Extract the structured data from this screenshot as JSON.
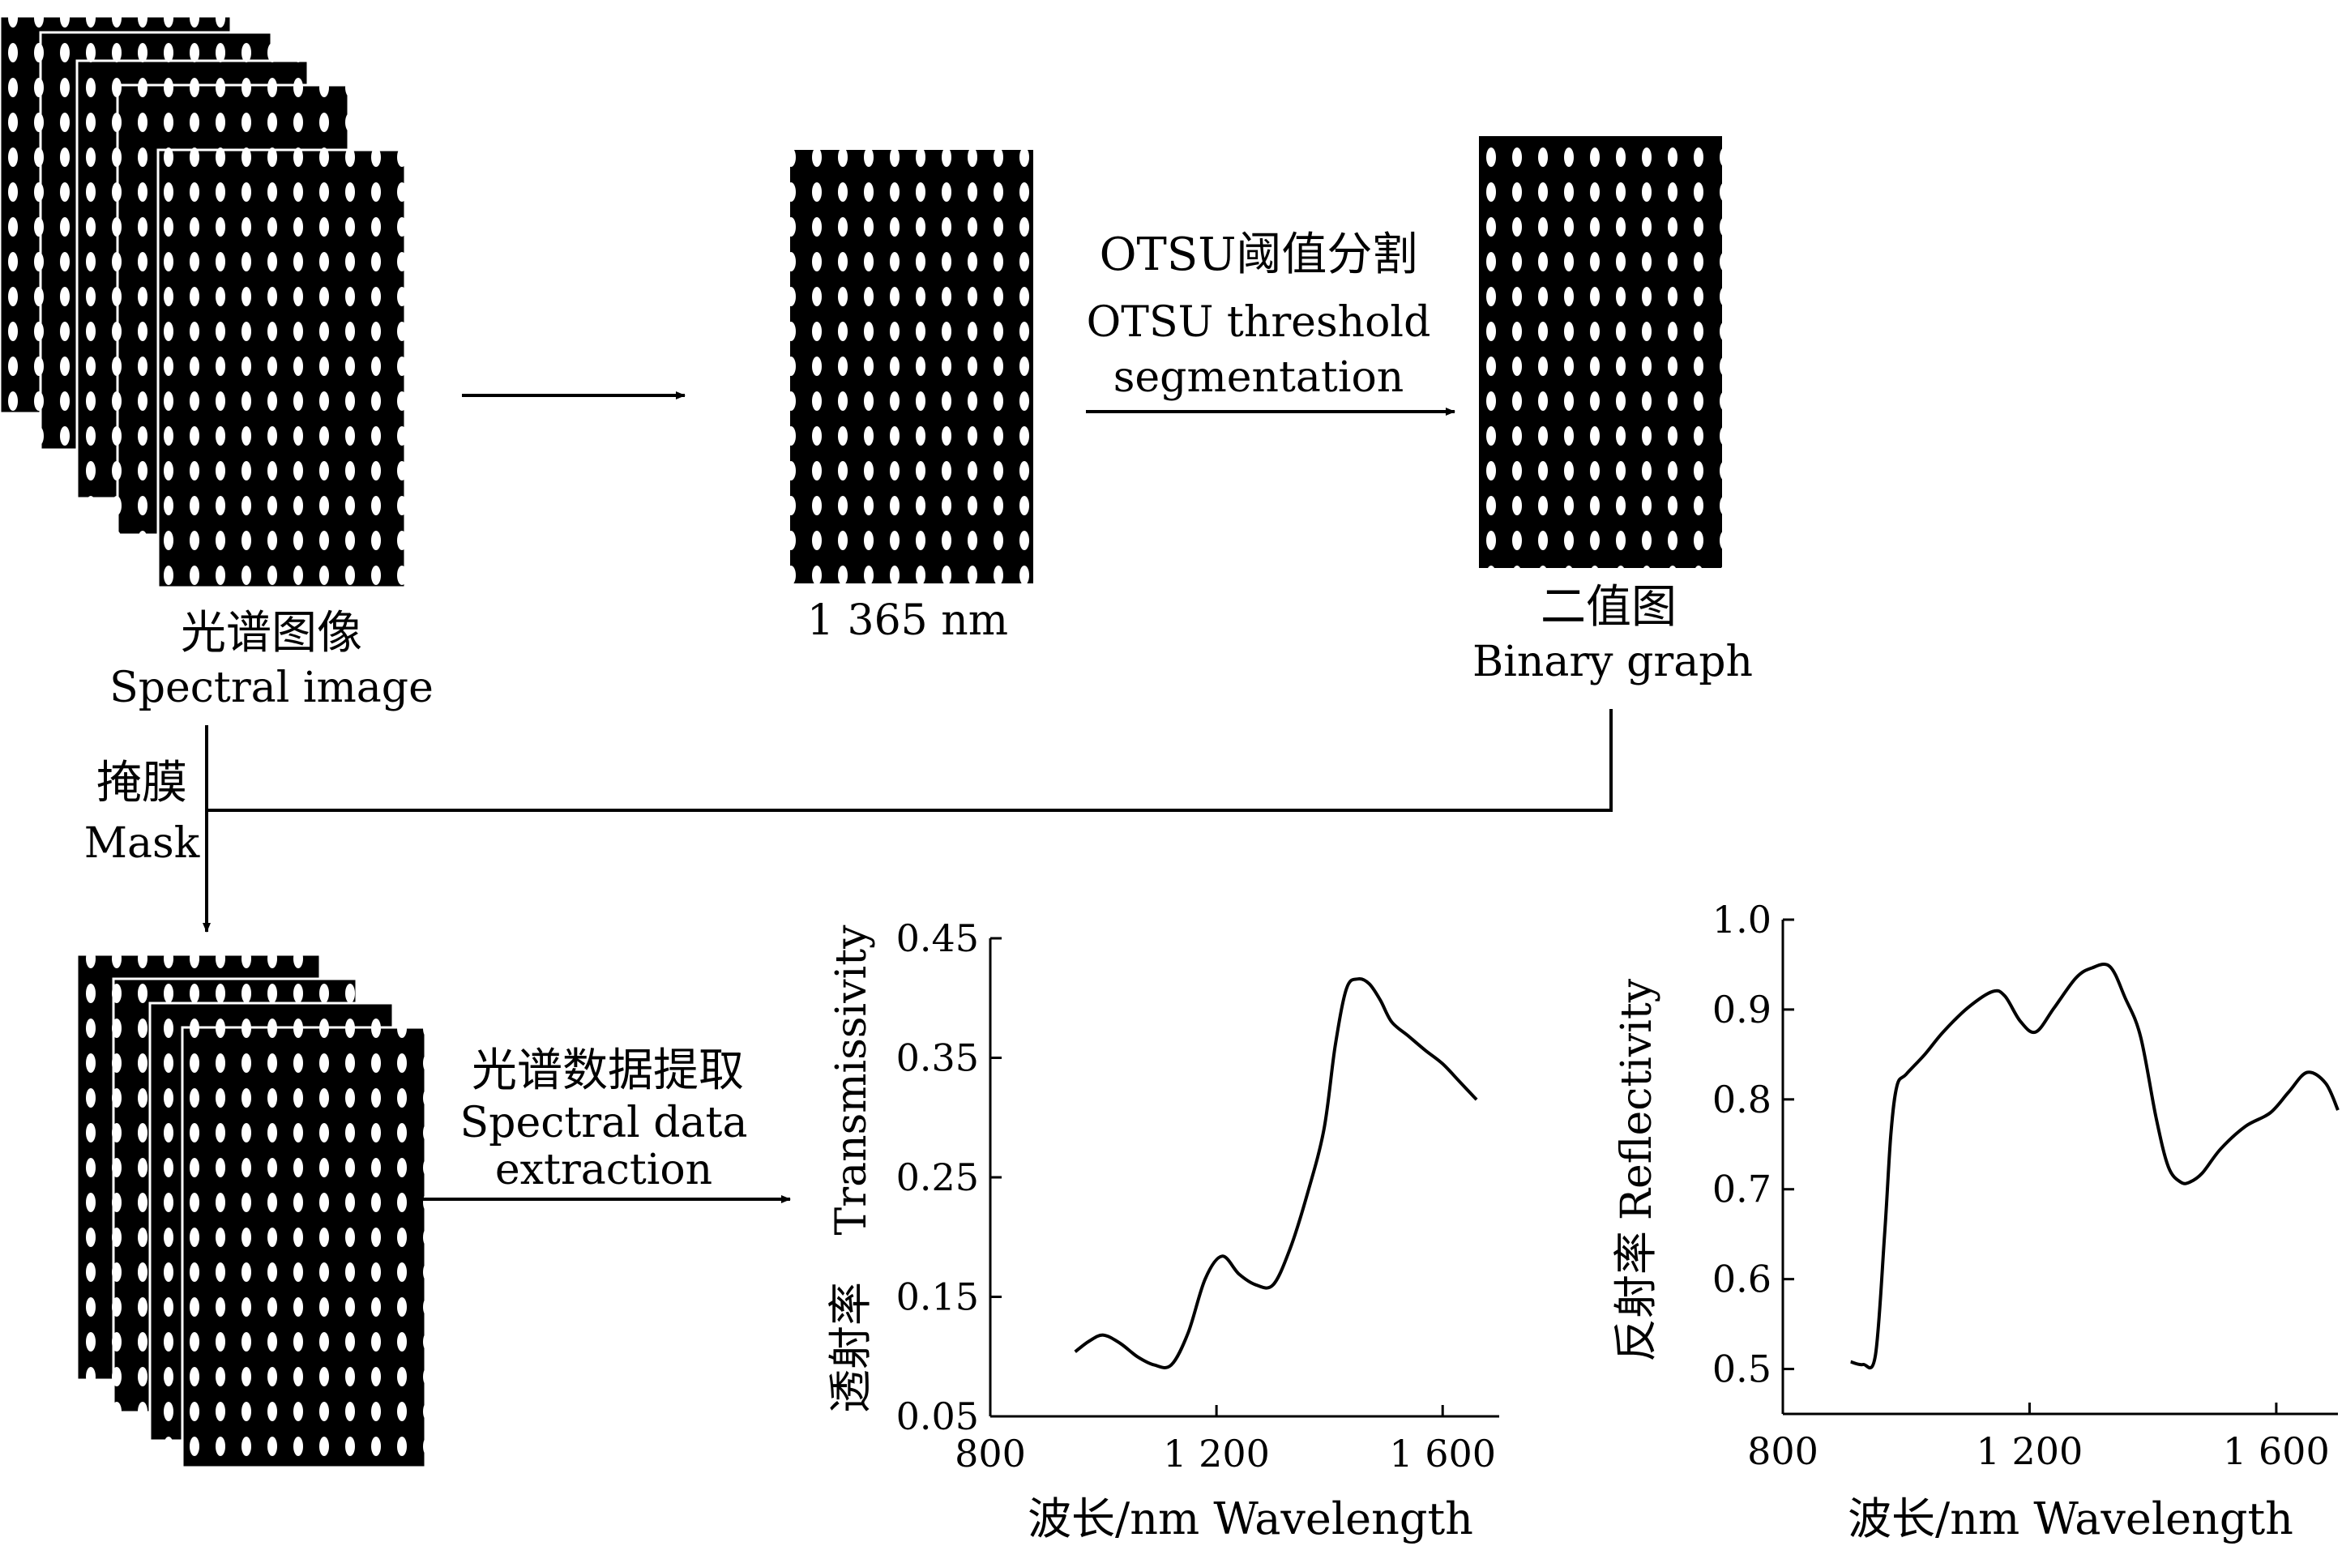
{
  "labels": {
    "spectral_image_cn": "光谱图像",
    "spectral_image_en": "Spectral image",
    "band_image": "1 365 nm",
    "otsu_cn": "OTSU阈值分割",
    "otsu_en_1": "OTSU threshold",
    "otsu_en_2": "segmentation",
    "binary_cn": "二值图",
    "binary_en": "Binary graph",
    "mask_cn": "掩膜",
    "mask_en": "Mask",
    "extract_cn": "光谱数据提取",
    "extract_en_1": "Spectral data",
    "extract_en_2": "extraction"
  },
  "chart_data": [
    {
      "type": "line",
      "xlabel": "波长/nm  Wavelength",
      "ylabel_cn": "透射率",
      "ylabel_en": "Transmissivity",
      "xlim": [
        800,
        1700
      ],
      "ylim": [
        0.05,
        0.45
      ],
      "xticks": [
        800,
        1200,
        1600
      ],
      "xtick_labels": [
        "800",
        "1 200",
        "1 600"
      ],
      "yticks": [
        0.05,
        0.15,
        0.25,
        0.35,
        0.45
      ],
      "ytick_labels": [
        "0.05",
        "0.15",
        "0.25",
        "0.35",
        "0.45"
      ],
      "series": [
        {
          "x": [
            950,
            975,
            1000,
            1030,
            1060,
            1090,
            1120,
            1150,
            1180,
            1210,
            1240,
            1270,
            1300,
            1330,
            1360,
            1390,
            1410,
            1430,
            1450,
            1470,
            1490,
            1510,
            1540,
            1570,
            1600,
            1630,
            1660
          ],
          "y": [
            0.104,
            0.113,
            0.118,
            0.111,
            0.1,
            0.093,
            0.093,
            0.12,
            0.165,
            0.184,
            0.169,
            0.16,
            0.16,
            0.19,
            0.235,
            0.29,
            0.36,
            0.408,
            0.416,
            0.412,
            0.398,
            0.38,
            0.368,
            0.356,
            0.345,
            0.33,
            0.315
          ]
        }
      ]
    },
    {
      "type": "line",
      "xlabel": "波长/nm  Wavelength",
      "ylabel_cn": "反射率",
      "ylabel_en": "Reflectivity",
      "xlim": [
        800,
        1700
      ],
      "ylim": [
        0.45,
        1.0
      ],
      "xticks": [
        800,
        1200,
        1600
      ],
      "xtick_labels": [
        "800",
        "1 200",
        "1 600"
      ],
      "yticks": [
        0.5,
        0.6,
        0.7,
        0.8,
        0.9,
        1.0
      ],
      "ytick_labels": [
        "0.5",
        "0.6",
        "0.7",
        "0.8",
        "0.9",
        "1.0"
      ],
      "series": [
        {
          "x": [
            910,
            930,
            950,
            965,
            975,
            985,
            1000,
            1030,
            1060,
            1100,
            1140,
            1160,
            1185,
            1210,
            1240,
            1275,
            1300,
            1330,
            1355,
            1380,
            1405,
            1425,
            1445,
            1460,
            1480,
            1510,
            1550,
            1590,
            1620,
            1650,
            1680,
            1700
          ],
          "y": [
            0.508,
            0.505,
            0.515,
            0.65,
            0.76,
            0.815,
            0.828,
            0.85,
            0.875,
            0.902,
            0.92,
            0.915,
            0.887,
            0.875,
            0.902,
            0.935,
            0.946,
            0.948,
            0.913,
            0.87,
            0.78,
            0.725,
            0.708,
            0.708,
            0.718,
            0.745,
            0.77,
            0.785,
            0.808,
            0.83,
            0.818,
            0.788
          ]
        }
      ]
    }
  ]
}
